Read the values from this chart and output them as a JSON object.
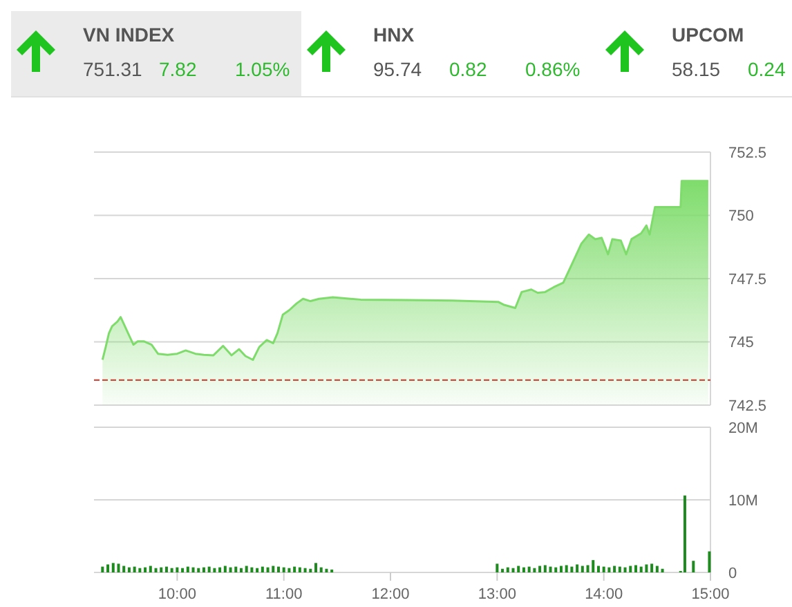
{
  "chart_data": [
    {
      "type": "other",
      "categories": [
        "VN INDEX",
        "HNX",
        "UPCOM"
      ],
      "value_labels": [
        [
          "751.31",
          "7.82",
          "1.05%"
        ],
        [
          "95.74",
          "0.82",
          "0.86%"
        ],
        [
          "58.15",
          "0.24"
        ]
      ]
    },
    {
      "type": "area",
      "color": "#7fdc6c",
      "grid": "y",
      "tick_labels": "y",
      "xlim": [
        9.22,
        15
      ],
      "ylim": [
        742.5,
        752.5
      ],
      "yticks": [
        742.5,
        745,
        747.5,
        750,
        752.5
      ],
      "ref_lines": [
        {
          "axis": "y",
          "value": 743.49,
          "color": "#c0392b",
          "line_style": "dashed"
        }
      ],
      "x": [
        9.3,
        9.33,
        9.36,
        9.39,
        9.44,
        9.47,
        9.5,
        9.54,
        9.59,
        9.63,
        9.69,
        9.76,
        9.82,
        9.91,
        10.0,
        10.08,
        10.17,
        10.25,
        10.34,
        10.43,
        10.51,
        10.58,
        10.64,
        10.71,
        10.77,
        10.84,
        10.9,
        10.94,
        10.99,
        11.05,
        11.12,
        11.18,
        11.25,
        11.33,
        11.46,
        11.72,
        12.15,
        12.58,
        13.01,
        13.06,
        13.17,
        13.23,
        13.32,
        13.38,
        13.45,
        13.53,
        13.62,
        13.7,
        13.79,
        13.86,
        13.92,
        13.98,
        14.04,
        14.08,
        14.16,
        14.21,
        14.26,
        14.35,
        14.4,
        14.43,
        14.48,
        14.72,
        14.73,
        14.98
      ],
      "values": [
        744.29,
        744.8,
        745.34,
        745.62,
        745.8,
        745.98,
        745.71,
        745.34,
        744.89,
        745.02,
        745.02,
        744.89,
        744.53,
        744.49,
        744.53,
        744.66,
        744.53,
        744.49,
        744.47,
        744.84,
        744.47,
        744.71,
        744.44,
        744.29,
        744.8,
        745.07,
        744.95,
        745.34,
        746.07,
        746.25,
        746.52,
        746.7,
        746.61,
        746.7,
        746.76,
        746.67,
        746.65,
        746.63,
        746.58,
        746.47,
        746.34,
        746.97,
        747.07,
        746.94,
        746.97,
        747.16,
        747.34,
        748.06,
        748.88,
        749.24,
        749.06,
        749.11,
        748.46,
        749.06,
        749.0,
        748.46,
        749.06,
        749.29,
        749.6,
        749.24,
        750.33,
        750.33,
        751.36,
        751.36
      ]
    },
    {
      "type": "bar",
      "color": "#1f8a1f",
      "grid": "y",
      "xlim": [
        9.22,
        15
      ],
      "xticks": [
        {
          "value": 10,
          "label": "10:00"
        },
        {
          "value": 11,
          "label": "11:00"
        },
        {
          "value": 12,
          "label": "12:00"
        },
        {
          "value": 13,
          "label": "13:00"
        },
        {
          "value": 14,
          "label": "14:00"
        },
        {
          "value": 15,
          "label": "15:00"
        }
      ],
      "ylim": [
        0,
        20000000
      ],
      "yticks": [
        0,
        {
          "value": 10000000,
          "label": "10M"
        },
        {
          "value": 20000000,
          "label": "20M"
        }
      ],
      "x": [
        9.3,
        9.35,
        9.4,
        9.45,
        9.5,
        9.55,
        9.6,
        9.65,
        9.7,
        9.75,
        9.8,
        9.85,
        9.9,
        9.95,
        10.0,
        10.05,
        10.1,
        10.15,
        10.2,
        10.25,
        10.3,
        10.35,
        10.4,
        10.45,
        10.5,
        10.55,
        10.6,
        10.65,
        10.7,
        10.75,
        10.8,
        10.85,
        10.9,
        10.95,
        11.0,
        11.05,
        11.1,
        11.15,
        11.2,
        11.25,
        11.3,
        11.35,
        11.4,
        11.45,
        13.0,
        13.05,
        13.1,
        13.15,
        13.2,
        13.25,
        13.3,
        13.35,
        13.4,
        13.45,
        13.5,
        13.55,
        13.6,
        13.65,
        13.7,
        13.75,
        13.8,
        13.85,
        13.9,
        13.95,
        14.0,
        14.05,
        14.1,
        14.15,
        14.2,
        14.25,
        14.3,
        14.35,
        14.4,
        14.45,
        14.5,
        14.55,
        14.72,
        14.76,
        14.84,
        14.99
      ],
      "values": [
        800000,
        1100000,
        1300000,
        1200000,
        900000,
        700000,
        800000,
        600000,
        700000,
        900000,
        600000,
        700000,
        800000,
        600000,
        700000,
        600000,
        800000,
        700000,
        600000,
        700000,
        800000,
        600000,
        700000,
        900000,
        700000,
        800000,
        600000,
        900000,
        700000,
        600000,
        800000,
        700000,
        900000,
        800000,
        700000,
        600000,
        800000,
        700000,
        600000,
        500000,
        1300000,
        700000,
        500000,
        400000,
        1200000,
        500000,
        700000,
        600000,
        900000,
        700000,
        800000,
        600000,
        900000,
        1000000,
        800000,
        700000,
        900000,
        1000000,
        800000,
        1100000,
        900000,
        1000000,
        1700000,
        900000,
        800000,
        700000,
        900000,
        800000,
        700000,
        900000,
        1000000,
        800000,
        1100000,
        1200000,
        900000,
        500000,
        200000,
        10600000,
        1600000,
        2900000
      ]
    }
  ]
}
